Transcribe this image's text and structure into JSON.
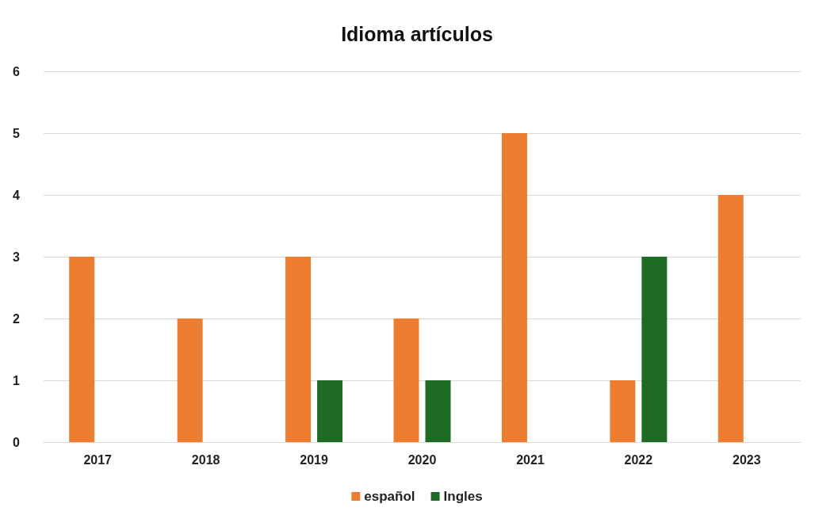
{
  "chart_data": {
    "type": "bar",
    "title": "Idioma artículos",
    "categories": [
      "2017",
      "2018",
      "2019",
      "2020",
      "2021",
      "2022",
      "2023"
    ],
    "series": [
      {
        "name": "español",
        "color": "#ed7d31",
        "values": [
          3,
          2,
          3,
          2,
          5,
          1,
          4
        ]
      },
      {
        "name": "Ingles",
        "color": "#1e6b26",
        "values": [
          0,
          0,
          1,
          1,
          0,
          3,
          0
        ]
      }
    ],
    "ylim": [
      0,
      6
    ],
    "yticks": [
      0,
      1,
      2,
      3,
      4,
      5,
      6
    ],
    "grid": "y",
    "legend": "bottom"
  }
}
